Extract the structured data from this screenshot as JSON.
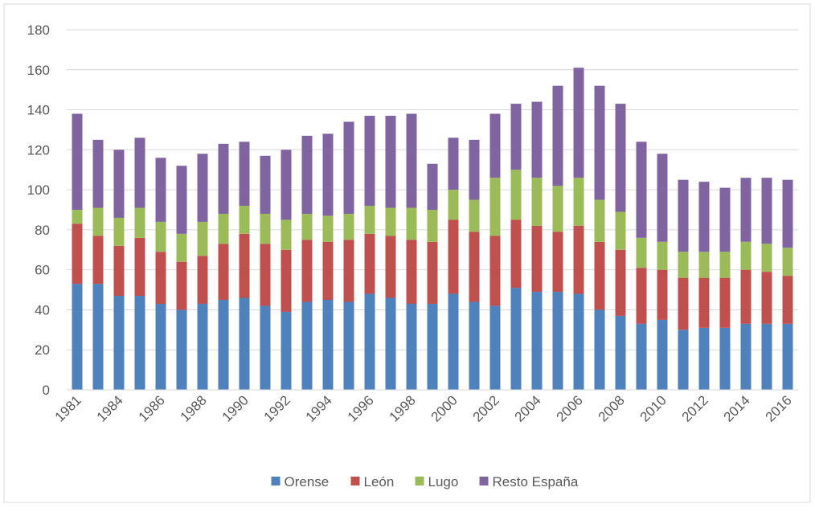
{
  "chart_data": {
    "type": "stacked_bar",
    "categories": [
      "1981",
      null,
      "1984",
      null,
      "1986",
      null,
      "1988",
      null,
      "1990",
      null,
      "1992",
      null,
      "1994",
      null,
      "1996",
      null,
      "1998",
      null,
      "2000",
      null,
      "2002",
      null,
      "2004",
      null,
      "2006",
      null,
      "2008",
      null,
      "2010",
      null,
      "2012",
      null,
      "2014",
      null,
      "2016"
    ],
    "series": [
      {
        "name": "Orense",
        "color": "#4f81bd",
        "values": [
          53,
          53,
          47,
          47,
          43,
          40,
          43,
          45,
          46,
          42,
          39,
          44,
          45,
          44,
          48,
          46,
          43,
          43,
          48,
          44,
          42,
          51,
          49,
          49,
          48,
          40,
          37,
          33,
          35,
          30,
          31,
          31,
          33,
          33,
          33
        ]
      },
      {
        "name": "León",
        "color": "#c0504d",
        "values": [
          30,
          24,
          25,
          29,
          26,
          24,
          24,
          28,
          32,
          31,
          31,
          31,
          29,
          31,
          30,
          31,
          32,
          31,
          37,
          35,
          35,
          34,
          33,
          30,
          34,
          34,
          33,
          28,
          25,
          26,
          25,
          25,
          27,
          26,
          24
        ]
      },
      {
        "name": "Lugo",
        "color": "#9bbb59",
        "values": [
          7,
          14,
          14,
          15,
          15,
          14,
          17,
          15,
          14,
          15,
          15,
          13,
          13,
          13,
          14,
          14,
          16,
          16,
          15,
          16,
          29,
          25,
          24,
          23,
          24,
          21,
          19,
          15,
          14,
          13,
          13,
          13,
          14,
          14,
          14
        ]
      },
      {
        "name": "Resto España",
        "color": "#8064a2",
        "values": [
          48,
          34,
          34,
          35,
          32,
          34,
          34,
          35,
          32,
          29,
          35,
          39,
          41,
          46,
          45,
          46,
          47,
          23,
          26,
          30,
          32,
          33,
          38,
          50,
          55,
          57,
          54,
          48,
          44,
          36,
          35,
          32,
          32,
          33,
          34
        ]
      }
    ],
    "ylim": [
      0,
      180
    ],
    "yticks": [
      0,
      20,
      40,
      60,
      80,
      100,
      120,
      140,
      160,
      180
    ],
    "grid": true,
    "legend": "bottom"
  }
}
